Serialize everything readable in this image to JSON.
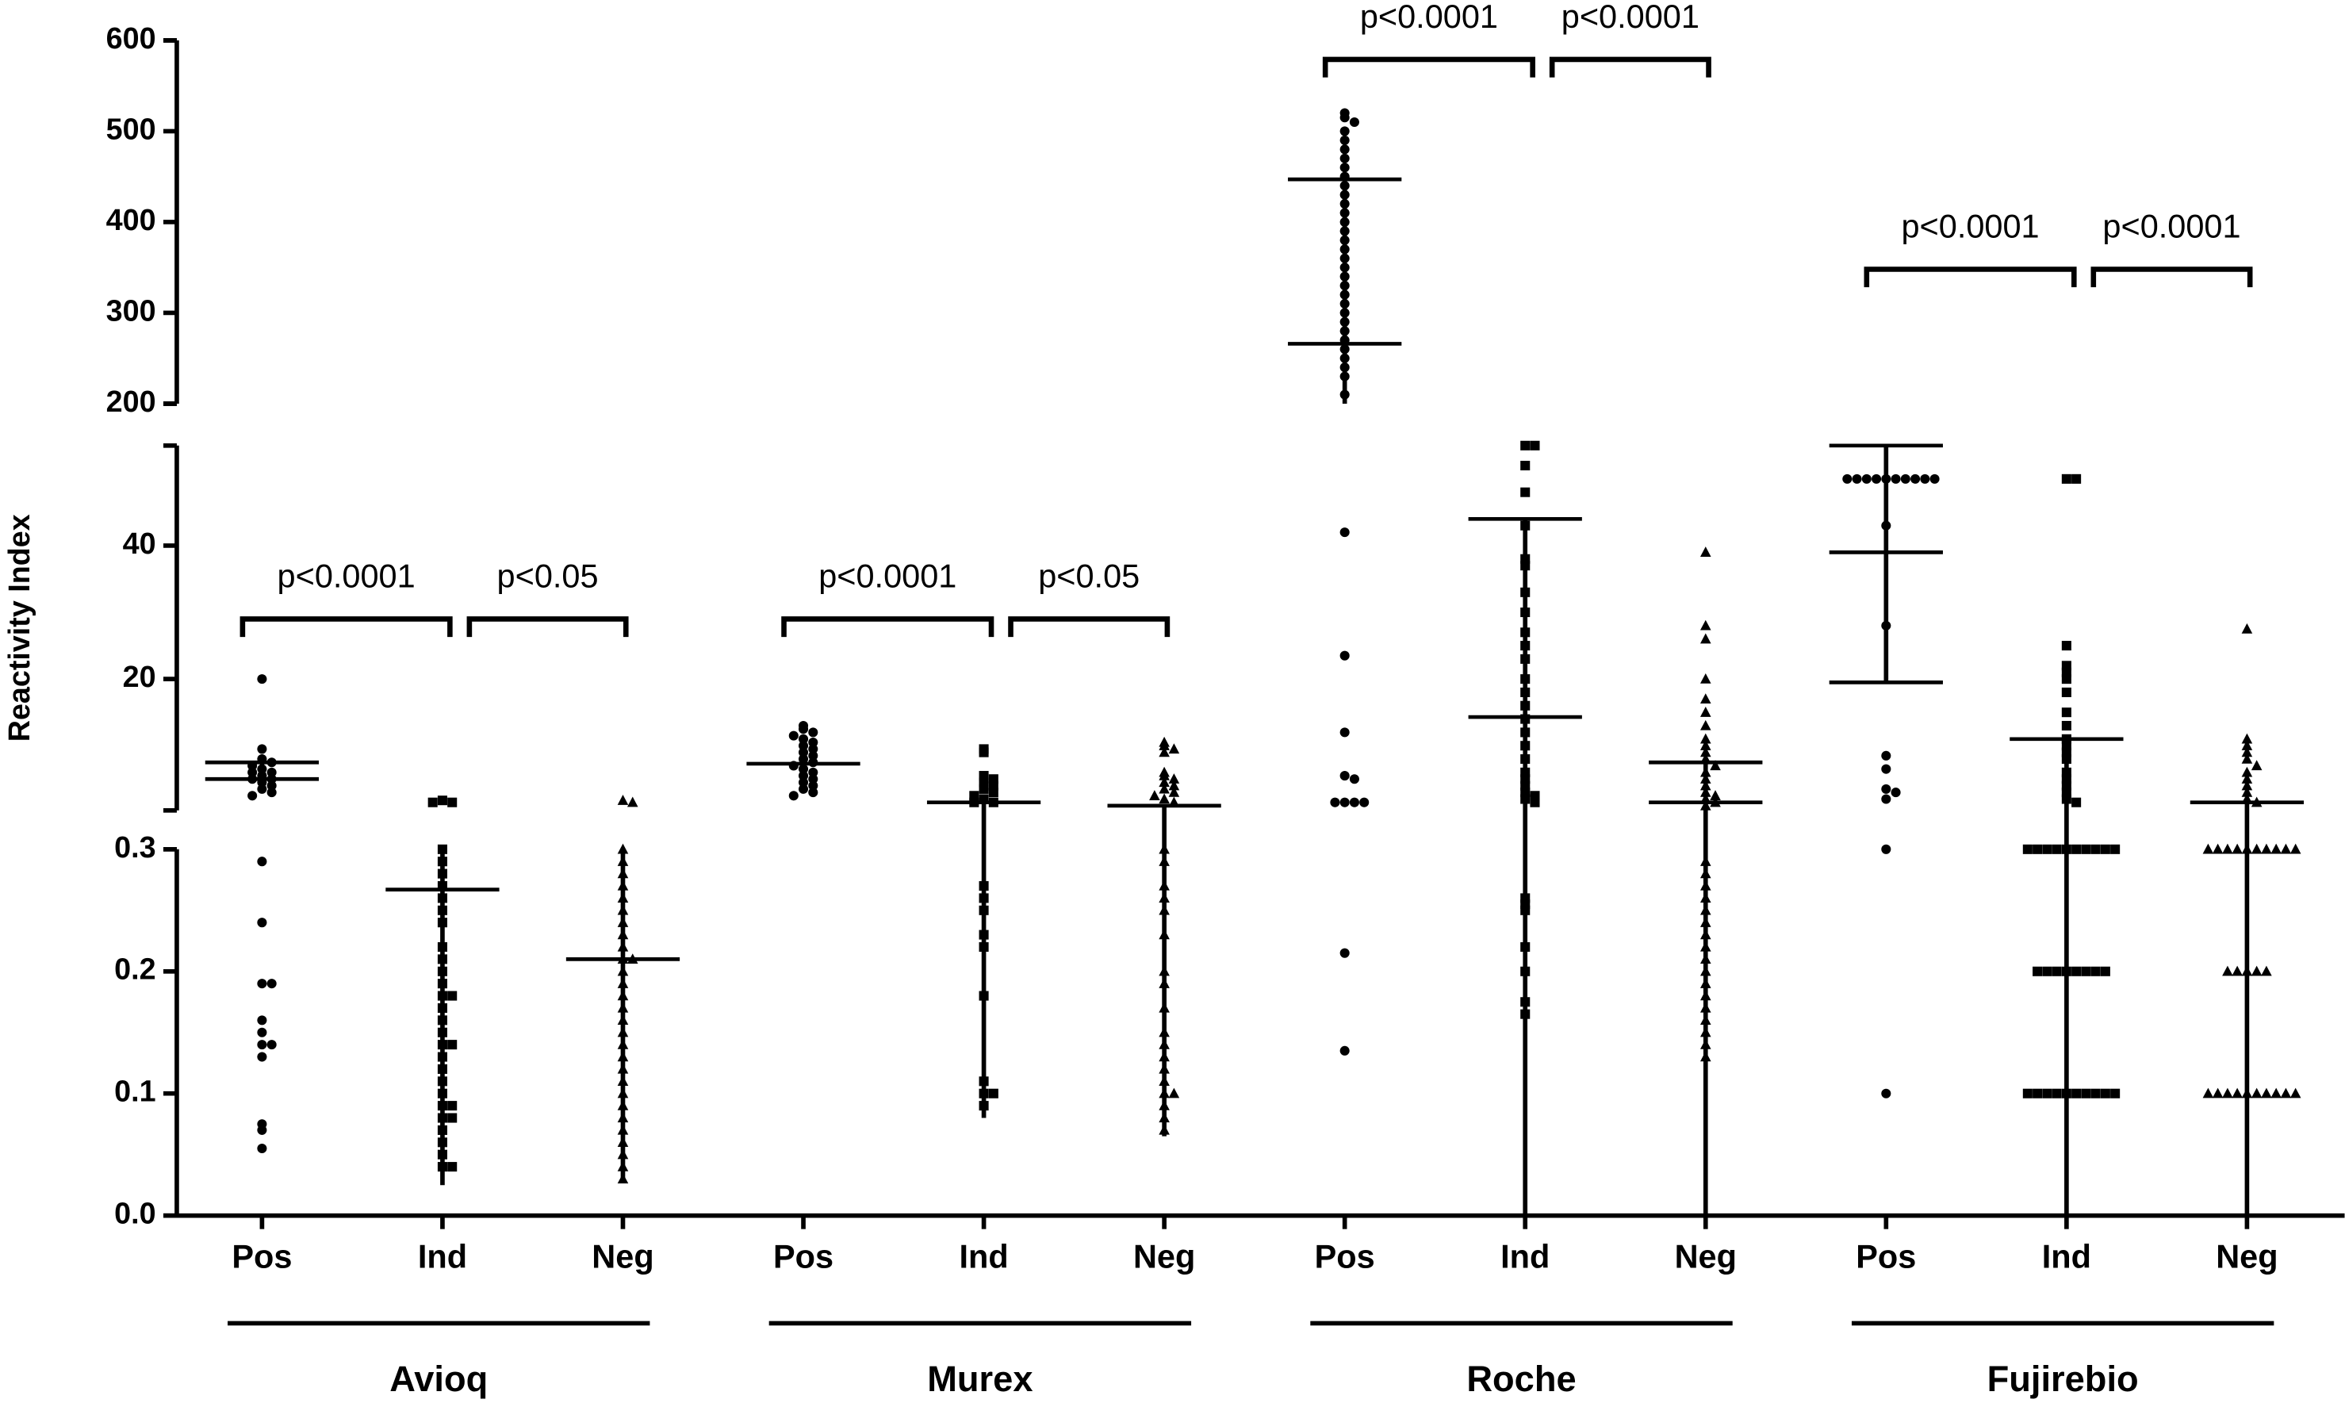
{
  "chart_data": {
    "type": "scatter",
    "ylabel": "Reactivity Index",
    "color": "#000000",
    "panels": [
      {
        "ylim": [
          0,
          0.3
        ],
        "yticks": [
          {
            "value": 0,
            "label": "0.0"
          },
          0.1,
          0.2,
          0.3
        ]
      },
      {
        "ylim": [
          0.3,
          55
        ],
        "yticks": [
          20,
          40
        ]
      },
      {
        "ylim": [
          200,
          600
        ],
        "yticks": [
          200,
          300,
          400,
          500,
          600
        ]
      }
    ],
    "categories": [
      "Pos",
      "Ind",
      "Neg",
      "Pos",
      "Ind",
      "Neg",
      "Pos",
      "Ind",
      "Neg",
      "Pos",
      "Ind",
      "Neg"
    ],
    "markers": [
      "circle",
      "square",
      "triangle",
      "circle",
      "square",
      "triangle",
      "circle",
      "square",
      "triangle",
      "circle",
      "square",
      "triangle"
    ],
    "values": [
      [
        20,
        9.5,
        8,
        7.5,
        7,
        6.5,
        6,
        6,
        5.5,
        5,
        5,
        4.5,
        4,
        3.5,
        3,
        2.5,
        0.29,
        0.24,
        0.19,
        0.19,
        0.16,
        0.15,
        0.14,
        0.14,
        0.13,
        0.075,
        0.07,
        0.055
      ],
      [
        1.8,
        1.5,
        1.5,
        0.3,
        0.29,
        0.28,
        0.27,
        0.26,
        0.25,
        0.24,
        0.22,
        0.21,
        0.2,
        0.19,
        0.18,
        0.18,
        0.17,
        0.16,
        0.15,
        0.14,
        0.14,
        0.13,
        0.12,
        0.11,
        0.1,
        0.09,
        0.09,
        0.08,
        0.08,
        0.07,
        0.06,
        0.05,
        0.04,
        0.04
      ],
      [
        1.8,
        1.5,
        0.3,
        0.29,
        0.28,
        0.27,
        0.26,
        0.25,
        0.24,
        0.23,
        0.22,
        0.21,
        0.21,
        0.2,
        0.19,
        0.18,
        0.17,
        0.16,
        0.15,
        0.14,
        0.13,
        0.12,
        0.11,
        0.1,
        0.09,
        0.08,
        0.07,
        0.06,
        0.05,
        0.04,
        0.03
      ],
      [
        13,
        12.5,
        12,
        11.5,
        11,
        10.5,
        10,
        9.5,
        9,
        8.5,
        8,
        7.5,
        7,
        6.5,
        6,
        5.5,
        5,
        4.5,
        4,
        3.5,
        3,
        2.5
      ],
      [
        9.5,
        9,
        5.5,
        5,
        4.5,
        4,
        3.5,
        3,
        2.5,
        2,
        1.5,
        1.5,
        0.27,
        0.26,
        0.25,
        0.23,
        0.22,
        0.18,
        0.11,
        0.1,
        0.1,
        0.09
      ],
      [
        10.5,
        10,
        9.5,
        9,
        6,
        5.5,
        5,
        4.5,
        4,
        3.5,
        3,
        2.5,
        2,
        1.5,
        0.3,
        0.29,
        0.27,
        0.26,
        0.25,
        0.23,
        0.2,
        0.19,
        0.17,
        0.15,
        0.14,
        0.13,
        0.12,
        0.11,
        0.1,
        0.1,
        0.09,
        0.08,
        0.07
      ],
      [
        520,
        515,
        510,
        500,
        490,
        480,
        470,
        460,
        450,
        440,
        430,
        420,
        410,
        400,
        390,
        380,
        370,
        360,
        350,
        340,
        330,
        320,
        310,
        300,
        290,
        280,
        270,
        260,
        250,
        240,
        230,
        210,
        42,
        23.5,
        12,
        5.5,
        5,
        1.5,
        1.5,
        1.5,
        1.5,
        0.215,
        0.135
      ],
      [
        55,
        55,
        52,
        48,
        43,
        38,
        37,
        33,
        30,
        27,
        25,
        23,
        20,
        18,
        16,
        14,
        12,
        10,
        8,
        6,
        5,
        4,
        3,
        2.5,
        2,
        1.5,
        0.26,
        0.255,
        0.25,
        0.22,
        0.2,
        0.175,
        0.165
      ],
      [
        39,
        28,
        26,
        20,
        17,
        15,
        13,
        11,
        10,
        9,
        8,
        7,
        6,
        5,
        4,
        3,
        2.5,
        2,
        1.5,
        1,
        0.29,
        0.28,
        0.27,
        0.26,
        0.25,
        0.24,
        0.23,
        0.22,
        0.21,
        0.2,
        0.19,
        0.18,
        0.17,
        0.16,
        0.15,
        0.14,
        0.13
      ],
      [
        50,
        50,
        50,
        50,
        50,
        50,
        50,
        50,
        50,
        50,
        43,
        28,
        8.5,
        6.5,
        3.5,
        3,
        2,
        0.3,
        0.1
      ],
      [
        50,
        50,
        25,
        22,
        21,
        20,
        18,
        15,
        13,
        11,
        10,
        9,
        8,
        6,
        5,
        4,
        3,
        2,
        1.5,
        0.3,
        0.3,
        0.3,
        0.3,
        0.3,
        0.3,
        0.3,
        0.3,
        0.3,
        0.3,
        0.2,
        0.2,
        0.2,
        0.2,
        0.2,
        0.2,
        0.2,
        0.2,
        0.1,
        0.1,
        0.1,
        0.1,
        0.1,
        0.1,
        0.1,
        0.1,
        0.1,
        0.1
      ],
      [
        27.5,
        11,
        10,
        9,
        8,
        7,
        6,
        5,
        4,
        3,
        2,
        1.5,
        0.3,
        0.3,
        0.3,
        0.3,
        0.3,
        0.3,
        0.3,
        0.3,
        0.3,
        0.3,
        0.2,
        0.2,
        0.2,
        0.2,
        0.2,
        0.1,
        0.1,
        0.1,
        0.1,
        0.1,
        0.1,
        0.1,
        0.1,
        0.1,
        0.1
      ]
    ],
    "lines": [
      [
        7.5,
        5
      ],
      [
        0.267
      ],
      [
        0.21
      ],
      [
        7.3
      ],
      [
        1.5
      ],
      [
        1
      ],
      [
        447,
        266
      ],
      [
        44,
        14.3
      ],
      [
        7.5,
        1.5
      ],
      [
        55,
        39,
        19.5
      ],
      [
        11
      ],
      [
        1.5
      ]
    ],
    "whiskers": [
      [
        5,
        7.5
      ],
      [
        0.025,
        0.3
      ],
      [
        0.03,
        0.3
      ],
      [
        3.5,
        11.5
      ],
      [
        0.08,
        1.5
      ],
      [
        0.065,
        1
      ],
      [
        200,
        447
      ],
      [
        0,
        44
      ],
      [
        0,
        7.5
      ],
      [
        19.5,
        55
      ],
      [
        0,
        11
      ],
      [
        0,
        1.5
      ]
    ],
    "groups": [
      {
        "name": "Avioq",
        "from": 0,
        "to": 2
      },
      {
        "name": "Murex",
        "from": 3,
        "to": 5
      },
      {
        "name": "Roche",
        "from": 6,
        "to": 8
      },
      {
        "name": "Fujirebio",
        "from": 9,
        "to": 11
      }
    ],
    "annotations": [
      {
        "text": "p<0.0001",
        "from": 0,
        "to": 1,
        "y": 29
      },
      {
        "text": "p<0.05",
        "from": 1,
        "to": 2,
        "y": 29
      },
      {
        "text": "p<0.0001",
        "from": 3,
        "to": 4,
        "y": 29
      },
      {
        "text": "p<0.05",
        "from": 4,
        "to": 5,
        "y": 29
      },
      {
        "text": "p<0.0001",
        "from": 6,
        "to": 7,
        "y": 579
      },
      {
        "text": "p<0.0001",
        "from": 7,
        "to": 8,
        "y": 579
      },
      {
        "text": "p<0.0001",
        "from": 9,
        "to": 10,
        "y": 348
      },
      {
        "text": "p<0.0001",
        "from": 10,
        "to": 11,
        "y": 348
      }
    ]
  }
}
